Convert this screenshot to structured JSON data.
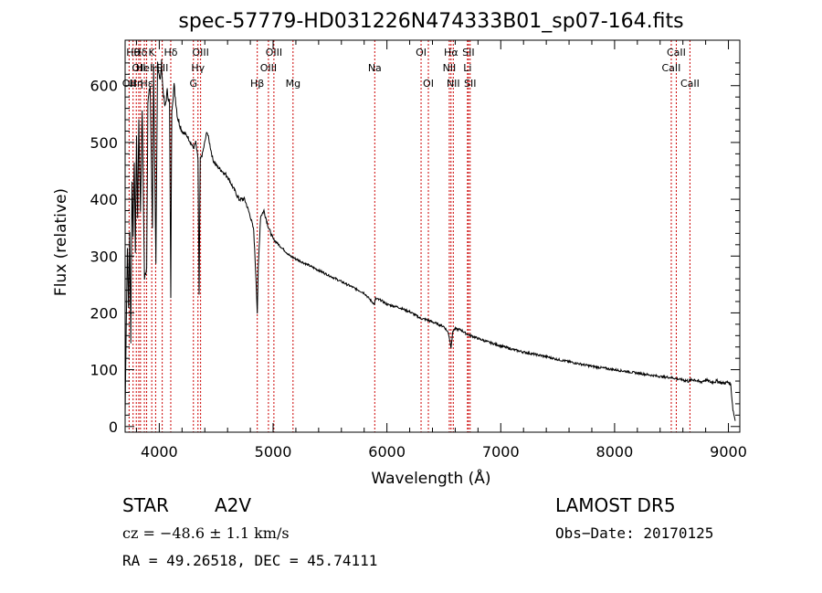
{
  "chart_data": {
    "type": "line",
    "title": "spec-57779-HD031226N474333B01_sp07-164.fits",
    "xlabel": "Wavelength (Å)",
    "ylabel": "Flux (relative)",
    "xlim": [
      3700,
      9100
    ],
    "ylim": [
      -10,
      680
    ],
    "xticks": [
      4000,
      5000,
      6000,
      7000,
      8000,
      9000
    ],
    "xtick_labels": [
      "4000",
      "5000",
      "6000",
      "7000",
      "8000",
      "9000"
    ],
    "yticks": [
      0,
      100,
      200,
      300,
      400,
      500,
      600
    ],
    "ytick_labels": [
      "0",
      "100",
      "200",
      "300",
      "400",
      "500",
      "600"
    ],
    "grid": false,
    "series": [
      {
        "x": [
          3700,
          3710,
          3720,
          3730,
          3740,
          3750,
          3760,
          3770,
          3780,
          3790,
          3800,
          3810,
          3820,
          3835,
          3850,
          3870,
          3889,
          3900,
          3920,
          3940,
          3950,
          3970,
          3985,
          4000,
          4010,
          4020,
          4030,
          4050,
          4070,
          4090,
          4101,
          4110,
          4130,
          4160,
          4200,
          4250,
          4300,
          4320,
          4340,
          4350,
          4360,
          4380,
          4420,
          4471,
          4500,
          4550,
          4600,
          4650,
          4700,
          4750,
          4800,
          4830,
          4850,
          4861,
          4870,
          4890,
          4920,
          4960,
          5000,
          5050,
          5100,
          5150,
          5200,
          5300,
          5400,
          5500,
          5600,
          5700,
          5800,
          5890,
          5900,
          5950,
          6000,
          6100,
          6200,
          6300,
          6350,
          6400,
          6450,
          6500,
          6540,
          6563,
          6580,
          6600,
          6650,
          6700,
          6800,
          6900,
          7000,
          7100,
          7200,
          7300,
          7400,
          7500,
          7600,
          7700,
          7800,
          7900,
          8000,
          8100,
          8200,
          8300,
          8400,
          8500,
          8550,
          8600,
          8650,
          8700,
          8750,
          8800,
          8850,
          8900,
          8950,
          9000,
          9020,
          9040,
          9060
        ],
        "y": [
          20,
          180,
          320,
          210,
          340,
          150,
          430,
          340,
          470,
          310,
          510,
          360,
          540,
          380,
          560,
          260,
          280,
          570,
          600,
          350,
          630,
          280,
          640,
          620,
          610,
          640,
          600,
          560,
          590,
          570,
          230,
          560,
          600,
          545,
          520,
          510,
          490,
          500,
          470,
          230,
          470,
          480,
          520,
          470,
          460,
          450,
          440,
          420,
          400,
          400,
          370,
          345,
          260,
          200,
          280,
          370,
          380,
          350,
          330,
          320,
          310,
          300,
          295,
          285,
          275,
          265,
          255,
          245,
          235,
          215,
          225,
          222,
          215,
          210,
          202,
          190,
          188,
          184,
          180,
          176,
          165,
          140,
          168,
          172,
          170,
          163,
          155,
          148,
          142,
          136,
          131,
          127,
          123,
          118,
          114,
          110,
          106,
          103,
          100,
          97,
          94,
          91,
          88,
          86,
          84,
          82,
          80,
          83,
          78,
          82,
          78,
          80,
          76,
          78,
          74,
          30,
          10
        ]
      }
    ],
    "line_markers": [
      {
        "wavelength": 3735,
        "row": 3,
        "label": "OII"
      },
      {
        "wavelength": 3770,
        "row": 1,
        "label": "Hθ"
      },
      {
        "wavelength": 3798,
        "row": 3,
        "label": "Hη"
      },
      {
        "wavelength": 3820,
        "row": 2,
        "label": "OII"
      },
      {
        "wavelength": 3835,
        "row": 1,
        "label": "Hδ"
      },
      {
        "wavelength": 3869,
        "row": 2,
        "label": "HeI"
      },
      {
        "wavelength": 3889,
        "row": 3,
        "label": "Hε"
      },
      {
        "wavelength": 3934,
        "row": 1,
        "label": "K"
      },
      {
        "wavelength": 3968,
        "row": 2,
        "label": "H"
      },
      {
        "wavelength": 4026,
        "row": 2,
        "label": "SII"
      },
      {
        "wavelength": 4101,
        "row": 1,
        "label": "Hδ"
      },
      {
        "wavelength": 4300,
        "row": 3,
        "label": "G"
      },
      {
        "wavelength": 4340,
        "row": 2,
        "label": "Hγ"
      },
      {
        "wavelength": 4363,
        "row": 1,
        "label": "OIII"
      },
      {
        "wavelength": 4861,
        "row": 3,
        "label": "Hβ"
      },
      {
        "wavelength": 4959,
        "row": 2,
        "label": "OIII"
      },
      {
        "wavelength": 5007,
        "row": 1,
        "label": "OIII"
      },
      {
        "wavelength": 5175,
        "row": 3,
        "label": "Mg"
      },
      {
        "wavelength": 5893,
        "row": 2,
        "label": "Na"
      },
      {
        "wavelength": 6300,
        "row": 1,
        "label": "OI"
      },
      {
        "wavelength": 6364,
        "row": 3,
        "label": "OI"
      },
      {
        "wavelength": 6548,
        "row": 2,
        "label": "NII"
      },
      {
        "wavelength": 6563,
        "row": 1,
        "label": "Hα"
      },
      {
        "wavelength": 6583,
        "row": 3,
        "label": "NII"
      },
      {
        "wavelength": 6708,
        "row": 2,
        "label": "Li"
      },
      {
        "wavelength": 6716,
        "row": 1,
        "label": "SII"
      },
      {
        "wavelength": 6731,
        "row": 3,
        "label": "SII"
      },
      {
        "wavelength": 8498,
        "row": 2,
        "label": "CaII"
      },
      {
        "wavelength": 8542,
        "row": 1,
        "label": "CaII"
      },
      {
        "wavelength": 8662,
        "row": 3,
        "label": "CaII"
      }
    ],
    "marker_color": "#cc0000",
    "line_color": "#000000"
  },
  "info": {
    "object_class": "STAR",
    "subclass": "A2V",
    "survey": "LAMOST  DR5",
    "cz": "cz = −48.6 ± 1.1 km/s",
    "obs_date": "Obs−Date: 20170125",
    "coords": "RA =  49.26518, DEC =  45.74111"
  }
}
